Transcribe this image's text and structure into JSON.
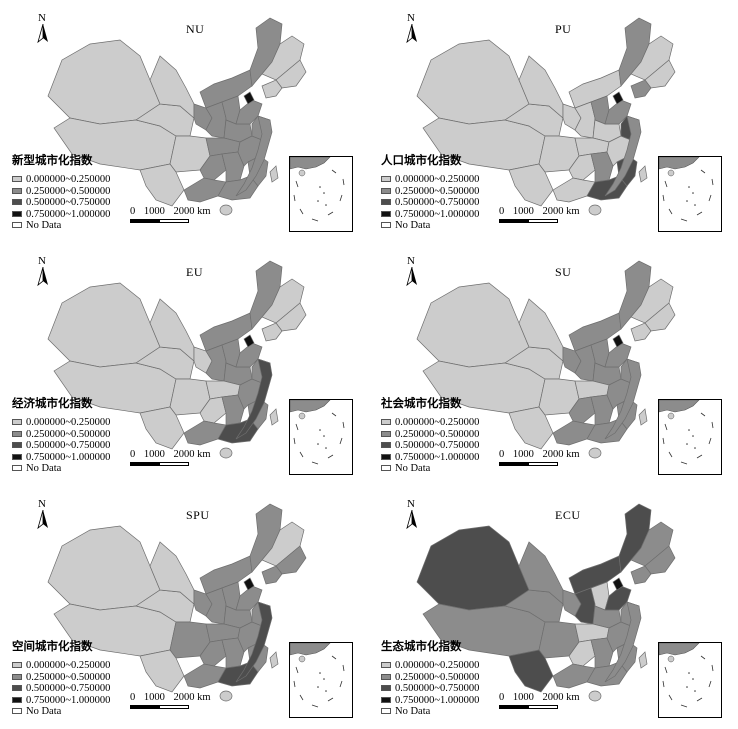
{
  "colors": {
    "class1": "#cccccc",
    "class2": "#8c8c8c",
    "class3": "#4d4d4d",
    "class4": "#111111",
    "nodata": "#ffffff",
    "border": "#6e6e6e"
  },
  "legend_classes": [
    "0.000000~0.250000",
    "0.250000~0.500000",
    "0.500000~0.750000",
    "0.750000~1.000000"
  ],
  "no_data_label": "No Data",
  "scale_bar": {
    "ticks": [
      "0",
      "1000",
      "2000 km"
    ]
  },
  "north_label": "N",
  "panels": [
    {
      "code": "NU",
      "legend_title": "新型城市化指数",
      "class_fills": [
        1,
        1,
        1,
        1,
        1,
        1,
        2,
        2,
        2,
        2,
        2,
        2,
        2,
        2,
        2,
        2,
        2,
        2,
        2,
        1,
        1,
        1,
        2,
        2,
        4
      ],
      "dark_coast": 0
    },
    {
      "code": "PU",
      "legend_title": "人口城市化指数",
      "class_fills": [
        1,
        1,
        1,
        1,
        1,
        1,
        1,
        2,
        1,
        1,
        2,
        1,
        1,
        1,
        2,
        1,
        1,
        3,
        3,
        1,
        1,
        2,
        2,
        3,
        4
      ],
      "dark_coast": 1
    },
    {
      "code": "EU",
      "legend_title": "经济城市化指数",
      "class_fills": [
        1,
        1,
        1,
        1,
        1,
        1,
        2,
        2,
        1,
        2,
        2,
        2,
        1,
        1,
        2,
        2,
        2,
        3,
        2,
        1,
        1,
        1,
        2,
        2,
        4
      ],
      "dark_coast": 2
    },
    {
      "code": "SU",
      "legend_title": "社会城市化指数",
      "class_fills": [
        1,
        1,
        1,
        1,
        1,
        1,
        2,
        2,
        2,
        2,
        2,
        2,
        1,
        2,
        2,
        2,
        2,
        2,
        2,
        1,
        1,
        1,
        2,
        2,
        4
      ],
      "dark_coast": 0
    },
    {
      "code": "SPU",
      "legend_title": "空间城市化指数",
      "class_fills": [
        1,
        1,
        1,
        1,
        2,
        1,
        2,
        2,
        2,
        2,
        2,
        2,
        2,
        2,
        2,
        2,
        2,
        3,
        2,
        1,
        2,
        2,
        2,
        2,
        4
      ],
      "dark_coast": 2
    },
    {
      "code": "ECU",
      "legend_title": "生态城市化指数",
      "class_fills": [
        3,
        2,
        2,
        2,
        2,
        3,
        3,
        3,
        2,
        3,
        1,
        2,
        1,
        1,
        2,
        2,
        2,
        2,
        2,
        2,
        2,
        2,
        3,
        2,
        4
      ],
      "dark_coast": 0
    }
  ]
}
